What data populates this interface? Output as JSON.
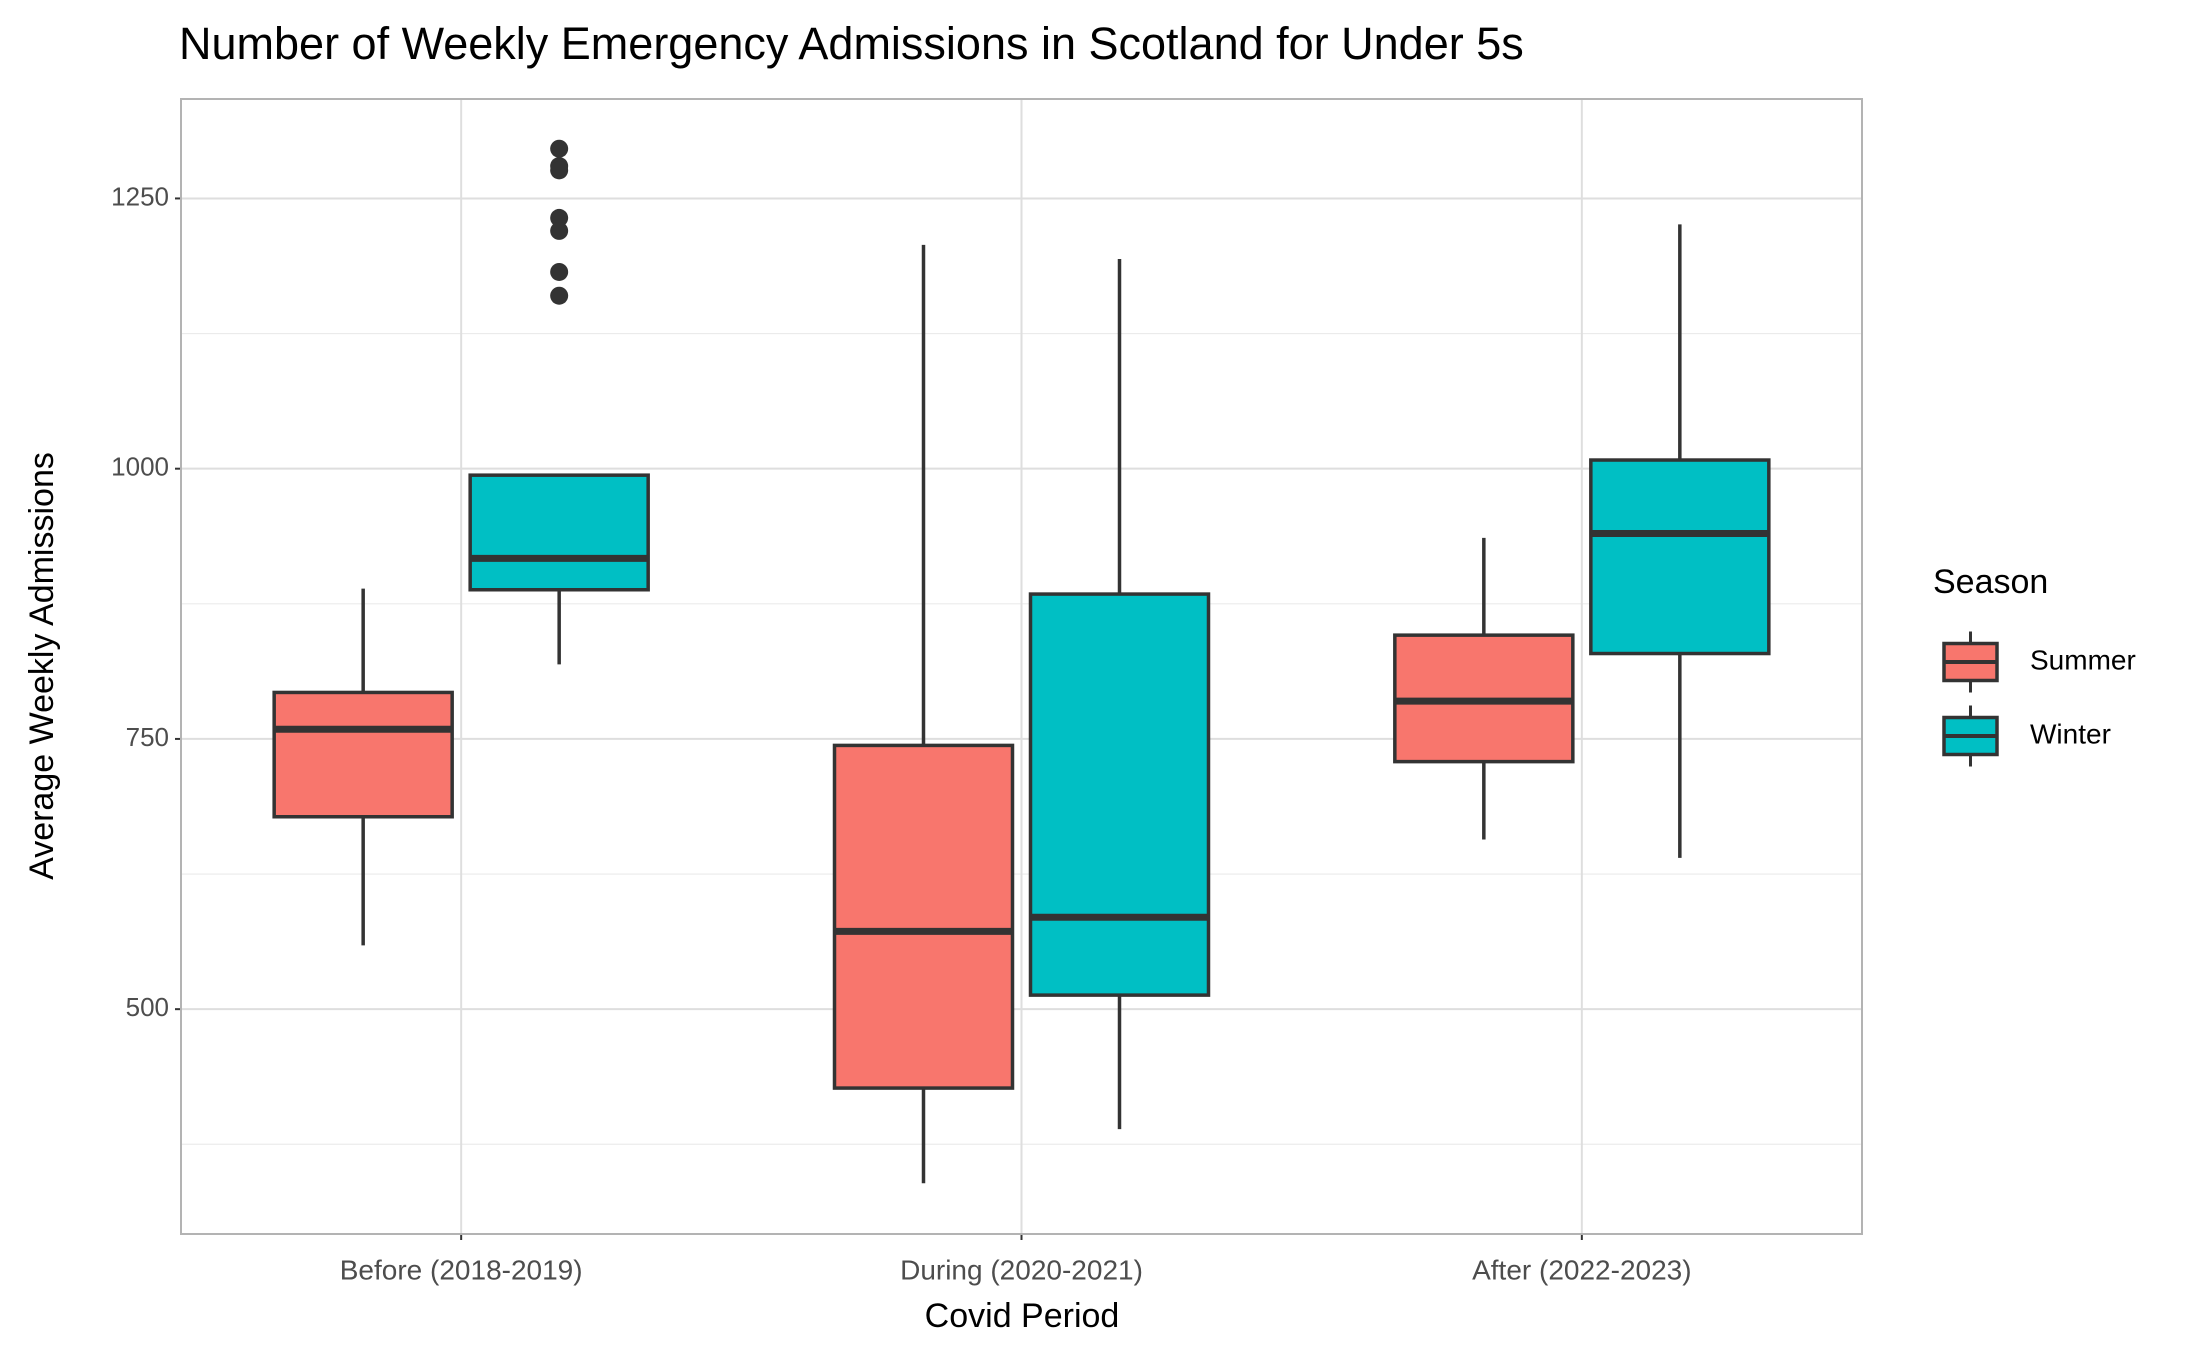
{
  "chart_data": {
    "type": "boxplot",
    "title": "Number of Weekly Emergency Admissions in Scotland for Under 5s",
    "x_label": "Covid Period",
    "y_label": "Average Weekly Admissions",
    "legend_title": "Season",
    "legend_position": "right",
    "grid": true,
    "categories": [
      "Before (2018-2019)",
      "During (2020-2021)",
      "After (2022-2023)"
    ],
    "ylim": [
      292,
      1342
    ],
    "yticks": [
      500,
      750,
      1000,
      1250
    ],
    "minor_yticks": [
      375,
      625,
      875,
      1125
    ],
    "series": [
      {
        "name": "Summer",
        "color": "#f8766d",
        "whisker_low": [
          559,
          339,
          657
        ],
        "q1": [
          678,
          427,
          729
        ],
        "median": [
          759,
          572,
          785
        ],
        "q3": [
          793,
          744,
          846
        ],
        "whisker_high": [
          889,
          1207,
          936
        ],
        "outliers": [
          [],
          [],
          []
        ]
      },
      {
        "name": "Winter",
        "color": "#00bfc4",
        "whisker_low": [
          819,
          389,
          640
        ],
        "q1": [
          888,
          513,
          829
        ],
        "median": [
          917,
          585,
          940
        ],
        "q3": [
          994,
          884,
          1008
        ],
        "whisker_high": [
          994,
          1194,
          1226
        ],
        "outliers": [
          [
            1296,
            1280,
            1276,
            1232,
            1220,
            1182,
            1160
          ],
          [],
          []
        ]
      }
    ]
  }
}
